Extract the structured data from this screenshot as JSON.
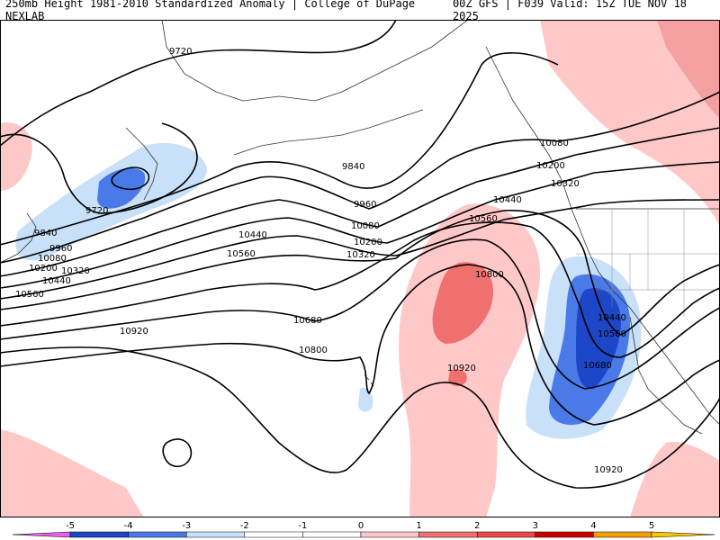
{
  "header": {
    "left_title": "250mb Height 1981-2010 Standardized Anomaly | College of DuPage NEXLAB",
    "right_title": "00Z GFS | F039 Valid: 15Z TUE NOV 18 2025"
  },
  "colors": {
    "neg5": "#e860e8",
    "neg4": "#8a1ab8",
    "neg3": "#1e46c8",
    "neg2": "#4a7ae8",
    "neg1": "#c8e0f8",
    "zero": "#ffffff",
    "pos1": "#ffc8c8",
    "pos2": "#f07070",
    "pos3": "#e84848",
    "pos4": "#c80000",
    "pos5": "#f0a000",
    "pos6": "#f8c800"
  },
  "contour_labels": [
    "9720",
    "9720",
    "9840",
    "9840",
    "9960",
    "9960",
    "10080",
    "10080",
    "10080",
    "10200",
    "10200",
    "10200",
    "10320",
    "10320",
    "10320",
    "10440",
    "10440",
    "10440",
    "10440",
    "10560",
    "10560",
    "10560",
    "10560",
    "10680",
    "10680",
    "10800",
    "10800",
    "10920",
    "10920",
    "10920"
  ],
  "colorbar": {
    "ticks": [
      "-5",
      "-4",
      "-3",
      "-2",
      "-1",
      "0",
      "1",
      "2",
      "3",
      "4",
      "5"
    ]
  }
}
